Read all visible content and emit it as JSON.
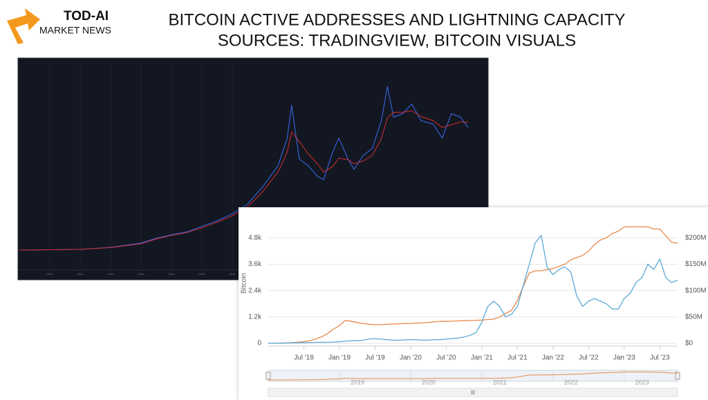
{
  "header": {
    "logo_title": "TOD-AI",
    "logo_subtitle": "MARKET NEWS",
    "title_line1": "BITCOIN ACTIVE ADDRESSES AND LIGHTNING CAPACITY",
    "title_line2": "SOURCES: TRADINGVIEW, BITCOIN VISUALS"
  },
  "chart_data": [
    {
      "type": "line",
      "background": "#131722",
      "x": [
        2009,
        2011,
        2012,
        2013,
        2013.5,
        2014,
        2014.5,
        2015,
        2015.5,
        2016,
        2016.5,
        2017,
        2017.5,
        2017.8,
        2017.95,
        2018.2,
        2018.5,
        2018.8,
        2019,
        2019.3,
        2019.5,
        2019.8,
        2020,
        2020.3,
        2020.6,
        2020.9,
        2021.1,
        2021.3,
        2021.6,
        2021.9,
        2022.2,
        2022.6,
        2022.9,
        2023.2,
        2023.5,
        2023.75
      ],
      "series": [
        {
          "color": "#3d6cf5",
          "values": [
            0,
            5,
            20,
            50,
            85,
            110,
            130,
            170,
            210,
            260,
            330,
            455,
            605,
            800,
            1040,
            655,
            605,
            530,
            505,
            705,
            805,
            655,
            580,
            680,
            730,
            930,
            1175,
            955,
            980,
            1050,
            930,
            905,
            805,
            980,
            955,
            880
          ]
        },
        {
          "color": "#d32f2f",
          "values": [
            0,
            5,
            18,
            45,
            80,
            105,
            125,
            160,
            200,
            245,
            310,
            420,
            560,
            700,
            850,
            780,
            690,
            620,
            560,
            600,
            660,
            650,
            620,
            640,
            680,
            800,
            950,
            990,
            990,
            1000,
            960,
            930,
            880,
            900,
            920,
            920
          ]
        }
      ],
      "xlim": [
        2009,
        2024
      ],
      "xticks": [
        2010,
        2011,
        2012,
        2013,
        2014,
        2015,
        2016
      ],
      "ylim": [
        0,
        1300
      ]
    },
    {
      "type": "line",
      "y_label": "Bitcoin",
      "x": [
        "2018-01",
        "2018-02",
        "2018-03",
        "2018-04",
        "2018-05",
        "2018-06",
        "2018-07",
        "2018-08",
        "2018-09",
        "2018-10",
        "2018-11",
        "2018-12",
        "2019-01",
        "2019-02",
        "2019-03",
        "2019-04",
        "2019-05",
        "2019-06",
        "2019-07",
        "2019-08",
        "2019-09",
        "2019-10",
        "2019-11",
        "2019-12",
        "2020-01",
        "2020-02",
        "2020-03",
        "2020-04",
        "2020-05",
        "2020-06",
        "2020-07",
        "2020-08",
        "2020-09",
        "2020-10",
        "2020-11",
        "2020-12",
        "2021-01",
        "2021-02",
        "2021-03",
        "2021-04",
        "2021-05",
        "2021-06",
        "2021-07",
        "2021-08",
        "2021-09",
        "2021-10",
        "2021-11",
        "2021-12",
        "2022-01",
        "2022-02",
        "2022-03",
        "2022-04",
        "2022-05",
        "2022-06",
        "2022-07",
        "2022-08",
        "2022-09",
        "2022-10",
        "2022-11",
        "2022-12",
        "2023-01",
        "2023-02",
        "2023-03",
        "2023-04",
        "2023-05",
        "2023-06",
        "2023-07",
        "2023-08",
        "2023-09",
        "2023-10"
      ],
      "series": [
        {
          "color": "#e8894a",
          "values": [
            2,
            5,
            10,
            20,
            30,
            50,
            80,
            120,
            200,
            300,
            450,
            650,
            800,
            1050,
            1000,
            950,
            900,
            870,
            850,
            850,
            870,
            880,
            890,
            900,
            900,
            920,
            930,
            950,
            980,
            1000,
            1000,
            1010,
            1020,
            1030,
            1040,
            1050,
            1060,
            1080,
            1100,
            1200,
            1350,
            1500,
            1950,
            2600,
            3200,
            3300,
            3300,
            3350,
            3400,
            3500,
            3600,
            3800,
            3900,
            4000,
            4200,
            4500,
            4700,
            4800,
            5000,
            5100,
            5300,
            5300,
            5300,
            5300,
            5300,
            5200,
            5200,
            4900,
            4600,
            4550
          ]
        },
        {
          "color": "#5aa9d6",
          "axis": "y2",
          "values": [
            0.1,
            0.2,
            0.3,
            0.5,
            0.8,
            1,
            1,
            1.5,
            2,
            2,
            2,
            2.5,
            3,
            4,
            5,
            5,
            6,
            8,
            9,
            8,
            7,
            6,
            6,
            6.5,
            7,
            7,
            6,
            6,
            7,
            7,
            8,
            9,
            10,
            12,
            15,
            20,
            40,
            70,
            80,
            70,
            50,
            55,
            70,
            110,
            150,
            190,
            205,
            145,
            130,
            140,
            145,
            135,
            90,
            70,
            80,
            85,
            80,
            75,
            65,
            65,
            85,
            95,
            115,
            125,
            150,
            140,
            160,
            125,
            115,
            120
          ]
        }
      ],
      "xlim": [
        "2018-01",
        "2023-10"
      ],
      "xticks": [
        {
          "value": "2018-07",
          "label": "Jul '18"
        },
        {
          "value": "2019-01",
          "label": "Jan '19"
        },
        {
          "value": "2019-07",
          "label": "Jul '19"
        },
        {
          "value": "2020-01",
          "label": "Jan '20"
        },
        {
          "value": "2020-07",
          "label": "Jul '20"
        },
        {
          "value": "2021-01",
          "label": "Jan '21"
        },
        {
          "value": "2021-07",
          "label": "Jul '21"
        },
        {
          "value": "2022-01",
          "label": "Jan '22"
        },
        {
          "value": "2022-07",
          "label": "Jul '22"
        },
        {
          "value": "2023-01",
          "label": "Jan '23"
        },
        {
          "value": "2023-07",
          "label": "Jul '23"
        }
      ],
      "ylim": [
        0,
        5500
      ],
      "yticks": [
        0,
        {
          "value": 1200,
          "label": "1.2k"
        },
        {
          "value": 2400,
          "label": "2.4k"
        },
        {
          "value": 3600,
          "label": "3.6k"
        },
        {
          "value": 4800,
          "label": "4.8k"
        }
      ],
      "y2lim": [
        0,
        229.2
      ],
      "y2ticks": [
        {
          "value": 0,
          "label": "$0"
        },
        {
          "value": 50,
          "label": "$50M"
        },
        {
          "value": 100,
          "label": "$100M"
        },
        {
          "value": 150,
          "label": "$150M"
        },
        {
          "value": 200,
          "label": "$200M"
        }
      ],
      "grid": true,
      "navigator_ticks": [
        2019,
        2020,
        2021,
        2022,
        2023
      ]
    }
  ]
}
